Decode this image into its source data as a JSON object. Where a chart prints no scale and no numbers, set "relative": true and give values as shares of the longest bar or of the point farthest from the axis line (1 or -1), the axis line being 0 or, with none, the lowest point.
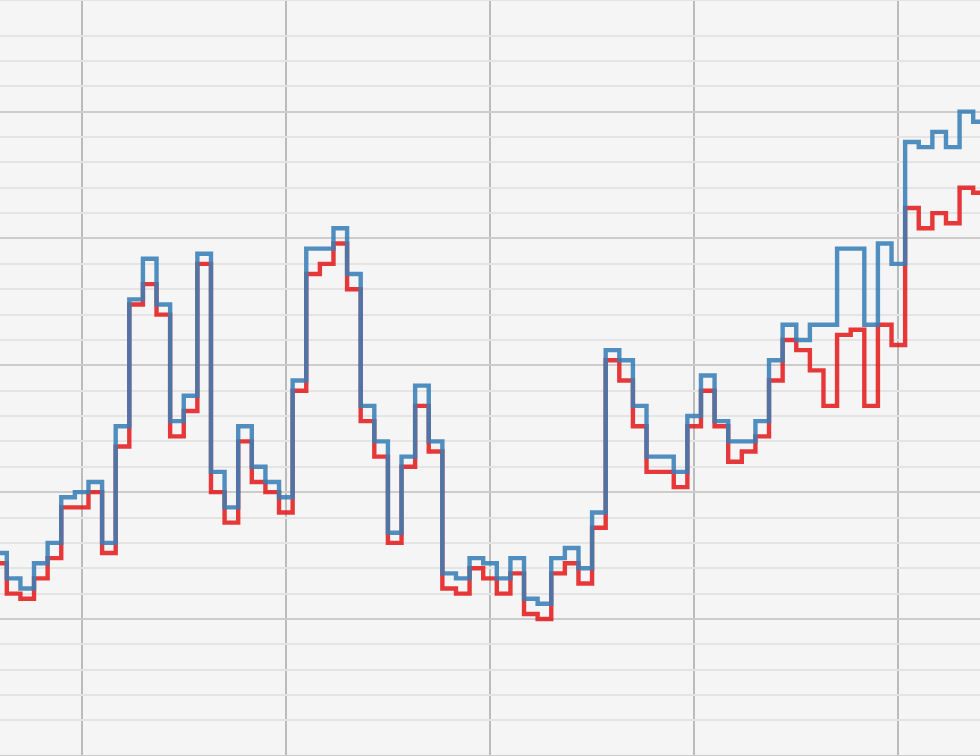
{
  "chart_data": {
    "type": "step",
    "relative": true,
    "grid": true,
    "categories": [
      null,
      null,
      null,
      null,
      null,
      null,
      null,
      null,
      null,
      null,
      null,
      null,
      null,
      null,
      null,
      null,
      null,
      null,
      null,
      null,
      null,
      null,
      null,
      null,
      null,
      null,
      null,
      null,
      null,
      null,
      null,
      null,
      null,
      null,
      null,
      null,
      null,
      null,
      null,
      null,
      null,
      null,
      null,
      null,
      null,
      null,
      null,
      null,
      null,
      null,
      null,
      null,
      null,
      null,
      null,
      null,
      null,
      null,
      null,
      null,
      null,
      null,
      null,
      null,
      null,
      null,
      null,
      null,
      null,
      null,
      null,
      null,
      null
    ],
    "series": [
      {
        "color": "#377eb8",
        "values": [
          0.13,
          0.08,
          0.06,
          0.11,
          0.15,
          0.24,
          0.25,
          0.27,
          0.15,
          0.38,
          0.63,
          0.71,
          0.62,
          0.39,
          0.44,
          0.72,
          0.29,
          0.22,
          0.38,
          0.3,
          0.27,
          0.24,
          0.47,
          0.73,
          0.73,
          0.77,
          0.68,
          0.42,
          0.35,
          0.17,
          0.32,
          0.46,
          0.35,
          0.09,
          0.08,
          0.12,
          0.11,
          0.08,
          0.12,
          0.04,
          0.03,
          0.12,
          0.14,
          0.1,
          0.21,
          0.53,
          0.51,
          0.42,
          0.32,
          0.32,
          0.29,
          0.4,
          0.48,
          0.39,
          0.35,
          0.35,
          0.39,
          0.51,
          0.58,
          0.55,
          0.58,
          0.58,
          0.73,
          0.73,
          0.58,
          0.74,
          0.7,
          0.94,
          0.93,
          0.96,
          0.93,
          1,
          0.98
        ]
      },
      {
        "color": "#e41a1c",
        "values": [
          0.11,
          0.05,
          0.04,
          0.08,
          0.12,
          0.22,
          0.22,
          0.25,
          0.13,
          0.34,
          0.62,
          0.66,
          0.6,
          0.36,
          0.41,
          0.7,
          0.25,
          0.19,
          0.35,
          0.27,
          0.25,
          0.21,
          0.45,
          0.68,
          0.7,
          0.74,
          0.65,
          0.39,
          0.32,
          0.15,
          0.3,
          0.42,
          0.33,
          0.06,
          0.05,
          0.1,
          0.08,
          0.05,
          0.09,
          0.01,
          0,
          0.09,
          0.11,
          0.07,
          0.18,
          0.51,
          0.47,
          0.38,
          0.29,
          0.29,
          0.26,
          0.38,
          0.45,
          0.38,
          0.31,
          0.33,
          0.36,
          0.47,
          0.55,
          0.53,
          0.49,
          0.42,
          0.56,
          0.57,
          0.42,
          0.58,
          0.54,
          0.81,
          0.77,
          0.8,
          0.78,
          0.85,
          0.84
        ]
      }
    ]
  }
}
